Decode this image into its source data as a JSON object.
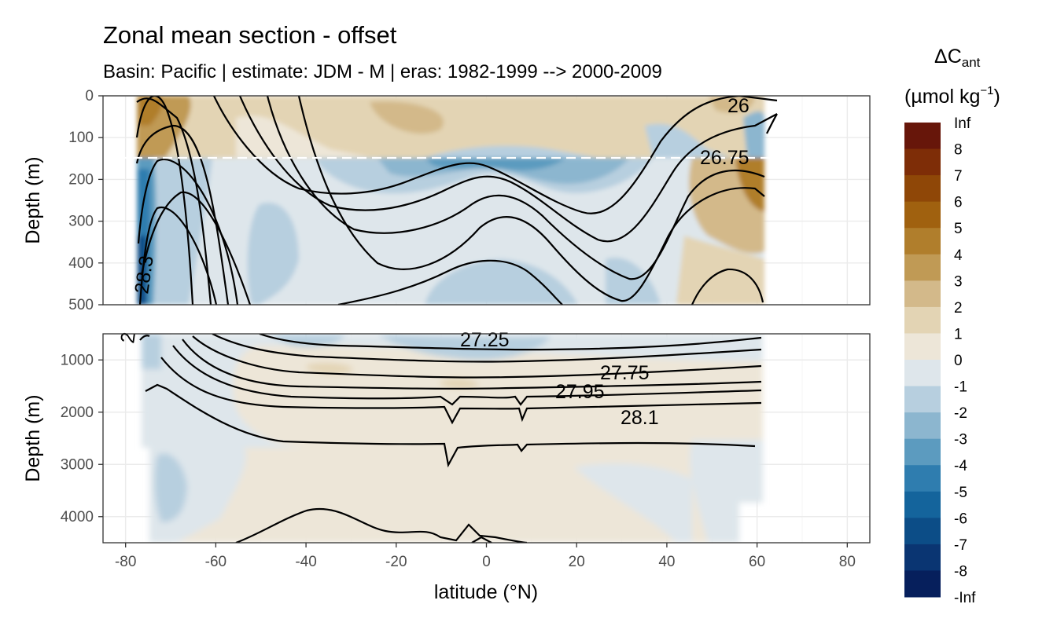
{
  "title": "Zonal mean section - offset",
  "subtitle": "Basin: Pacific | estimate: JDM - M | eras: 1982-1999 --> 2000-2009",
  "legend": {
    "title_main": "ΔC",
    "title_sub": "ant",
    "unit_main": "(µmol kg",
    "unit_sup": "−1",
    "unit_end": ")",
    "labels": [
      "Inf",
      "8",
      "7",
      "6",
      "5",
      "4",
      "3",
      "2",
      "1",
      "0",
      "-1",
      "-2",
      "-3",
      "-4",
      "-5",
      "-6",
      "-7",
      "-8",
      "-Inf"
    ],
    "colors": [
      "#67160a",
      "#7e2d07",
      "#8f4707",
      "#a0610f",
      "#b07e2c",
      "#c09a55",
      "#d3b98a",
      "#e3d4b4",
      "#ede6d8",
      "#dee6eb",
      "#b7cfdf",
      "#8cb6cf",
      "#5c9bbf",
      "#2f7daf",
      "#14649c",
      "#0c4d87",
      "#0a3572",
      "#061f5c"
    ]
  },
  "chart_data": [
    {
      "type": "heatmap",
      "panel": "upper",
      "title": "Zonal mean section - offset",
      "subtitle": "Basin: Pacific | estimate: JDM - M | eras: 1982-1999 --> 2000-2009",
      "xlabel": "",
      "ylabel": "Depth (m)",
      "xlim": [
        -85,
        85
      ],
      "ylim": [
        500,
        0
      ],
      "y_ticks": [
        0,
        100,
        200,
        300,
        400,
        500
      ],
      "grid": true,
      "reference_line_depth": 150,
      "contour_labels": [
        {
          "text": "26",
          "lat": 57,
          "depth": 25
        },
        {
          "text": "26.75",
          "lat": 53,
          "depth": 147
        },
        {
          "text": "28.3",
          "lat": -77,
          "depth": 420
        }
      ]
    },
    {
      "type": "heatmap",
      "panel": "lower",
      "xlabel": "latitude (°N)",
      "ylabel": "Depth (m)",
      "xlim": [
        -85,
        85
      ],
      "ylim": [
        4500,
        500
      ],
      "x_ticks": [
        -80,
        -60,
        -40,
        -20,
        0,
        20,
        40,
        60,
        80
      ],
      "y_ticks": [
        1000,
        2000,
        3000,
        4000
      ],
      "grid": true,
      "contour_labels": [
        {
          "text": "27.25",
          "lat": -5,
          "depth": 560
        },
        {
          "text": "27.75",
          "lat": 32,
          "depth": 1230
        },
        {
          "text": "27.95",
          "lat": 21,
          "depth": 1600
        },
        {
          "text": "28.1",
          "lat": 34,
          "depth": 2100
        },
        {
          "text": "2",
          "lat": -79,
          "depth": 560
        }
      ]
    }
  ]
}
